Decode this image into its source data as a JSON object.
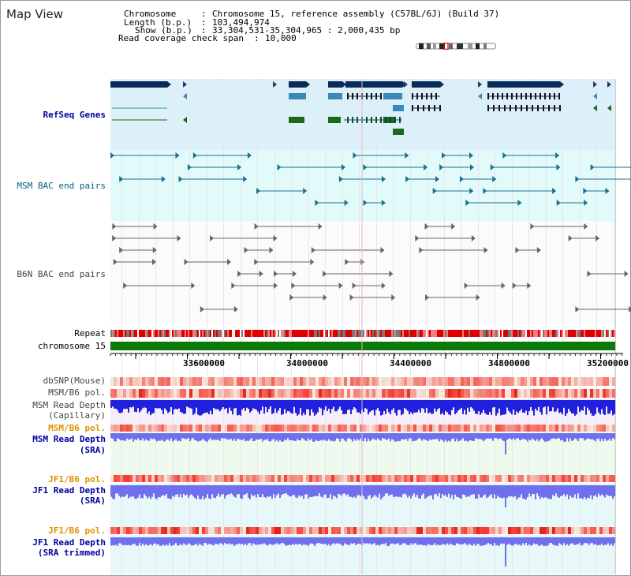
{
  "view_title": "Map View",
  "info": {
    "chromosome_label": "Chromosome",
    "chromosome_value": "Chromosome 15, reference assembly (C57BL/6J) (Build 37)",
    "length_label": "Length (b.p.)",
    "length_value": "103,494,974",
    "show_label": "Show (b.p.)",
    "show_value": "33,304,531-35,304,965 : 2,000,435 bp",
    "coverage_label": "Read coverage check span",
    "coverage_value": "10,000"
  },
  "tracks": {
    "refseq": "RefSeq Genes",
    "msm_bac": "MSM BAC end pairs",
    "b6n_bac": "B6N BAC end pairs",
    "repeat": "Repeat",
    "chromosome": "chromosome 15",
    "dbsnp": "dbSNP(Mouse)",
    "msm_b6_pol": "MSM/B6 pol.",
    "msm_depth_cap_1": "MSM Read Depth",
    "msm_depth_cap_2": "(Capillary)",
    "msm_b6_pol_2": "MSM/B6 pol.",
    "msm_depth_sra_1": "MSM Read Depth",
    "msm_depth_sra_2": "(SRA)",
    "jf1_b6_pol": "JF1/B6 pol.",
    "jf1_depth_sra_1": "JF1 Read Depth",
    "jf1_depth_sra_2": "(SRA)",
    "jf1_b6_pol_2": "JF1/B6 pol.",
    "jf1_depth_trim_1": "JF1 Read Depth",
    "jf1_depth_trim_2": "(SRA trimmed)"
  },
  "axis_ticks": [
    "33600000",
    "34000000",
    "34400000",
    "34800000",
    "35200000"
  ],
  "colors": {
    "refseq_dark": "#0a2a5a",
    "refseq_mid": "#3a8ab8",
    "refseq_teal": "#20a0a0",
    "refseq_green": "#1a6a1a",
    "bac_msm": "#1a7090",
    "bac_b6n": "#666666",
    "repeat_red": "#dd0000",
    "chromosome_green": "#0a7a0a",
    "depth_blue": "#2020dd",
    "depth_light": "#7070ee",
    "pol_orange": "#e09000"
  }
}
